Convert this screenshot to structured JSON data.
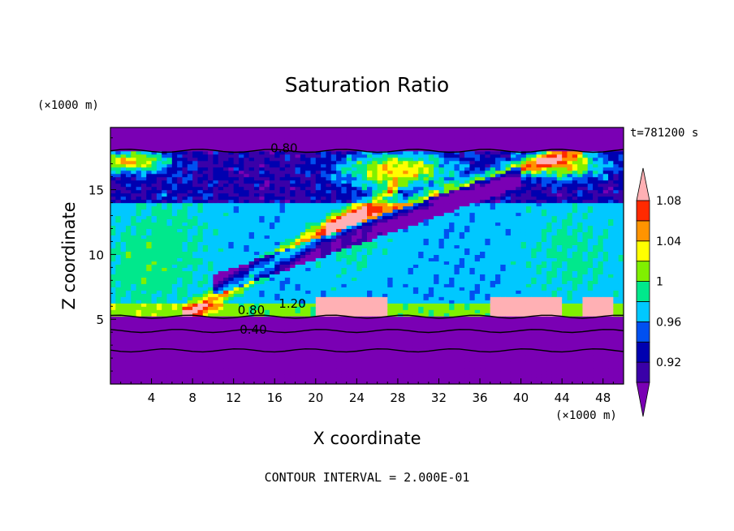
{
  "chart_data": {
    "type": "heatmap",
    "title": "Saturation Ratio",
    "xlabel": "X coordinate",
    "ylabel": "Z coordinate",
    "x_unit": "(×1000 m)",
    "y_unit": "(×1000 m)",
    "time_label": "t=781200 s",
    "footer": "CONTOUR INTERVAL = 2.000E-01",
    "xlim": [
      0,
      50
    ],
    "ylim": [
      0,
      19.8
    ],
    "xticks": [
      4,
      8,
      12,
      16,
      20,
      24,
      28,
      32,
      36,
      40,
      44,
      48
    ],
    "yticks": [
      5,
      10,
      15
    ],
    "colorbar": {
      "ticks": [
        "0.92",
        "0.96",
        "1",
        "1.04",
        "1.08"
      ],
      "levels": [
        0.9,
        0.92,
        0.94,
        0.96,
        0.98,
        1.0,
        1.02,
        1.04,
        1.06,
        1.08,
        1.1
      ],
      "colors": [
        "#7a00b4",
        "#3a00a8",
        "#0000b0",
        "#0050f0",
        "#00c8ff",
        "#00e88c",
        "#80f000",
        "#ffff00",
        "#ff9400",
        "#ff2a00",
        "#ffb0b4"
      ]
    },
    "contour_labels": [
      {
        "text": "0.80",
        "x": 15.6,
        "y": 18.0
      },
      {
        "text": "1.20",
        "x": 16.4,
        "y": 6.0
      },
      {
        "text": "0.80",
        "x": 12.4,
        "y": 5.5
      },
      {
        "text": "0.40",
        "x": 12.6,
        "y": 4.0
      }
    ],
    "contour_lines_z": [
      18.0,
      5.2,
      4.1,
      2.6
    ]
  }
}
